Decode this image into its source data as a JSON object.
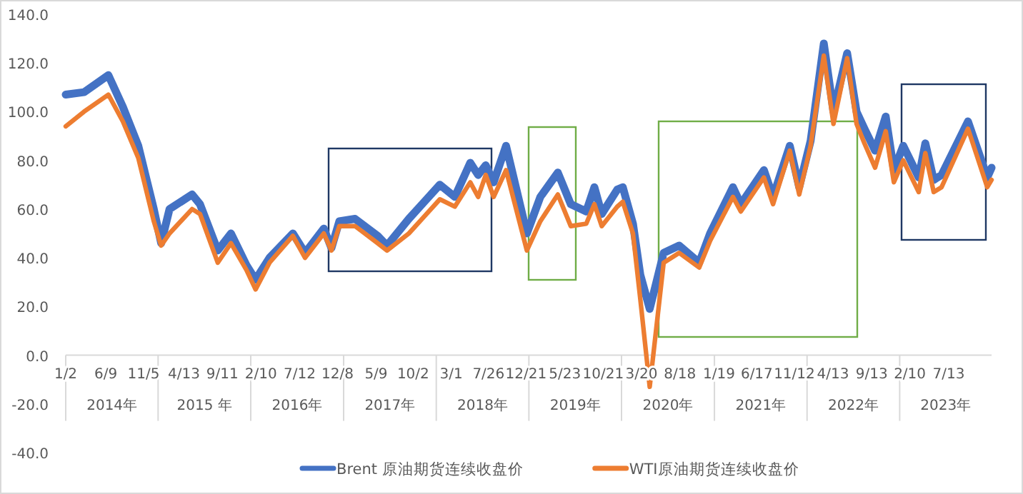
{
  "chart_data": {
    "type": "line",
    "x": [
      "2014-01-02",
      "2014-03-15",
      "2014-06-19",
      "2014-08-15",
      "2014-10-15",
      "2014-12-15",
      "2015-01-13",
      "2015-02-15",
      "2015-05-15",
      "2015-06-15",
      "2015-08-24",
      "2015-10-15",
      "2015-12-15",
      "2016-01-20",
      "2016-03-15",
      "2016-06-15",
      "2016-08-02",
      "2016-10-15",
      "2016-11-14",
      "2016-12-15",
      "2017-02-15",
      "2017-05-15",
      "2017-06-21",
      "2017-09-15",
      "2017-11-15",
      "2018-01-15",
      "2018-03-15",
      "2018-05-15",
      "2018-06-15",
      "2018-07-15",
      "2018-08-15",
      "2018-10-03",
      "2018-12-24",
      "2019-02-15",
      "2019-04-25",
      "2019-06-15",
      "2019-08-15",
      "2019-09-16",
      "2019-10-15",
      "2019-12-15",
      "2020-01-06",
      "2020-02-15",
      "2020-03-15",
      "2020-04-21",
      "2020-06-15",
      "2020-08-15",
      "2020-11-02",
      "2020-12-15",
      "2021-03-15",
      "2021-04-15",
      "2021-07-15",
      "2021-08-20",
      "2021-10-25",
      "2021-12-01",
      "2022-01-15",
      "2022-03-08",
      "2022-04-15",
      "2022-06-08",
      "2022-07-15",
      "2022-08-15",
      "2022-09-26",
      "2022-11-07",
      "2022-12-09",
      "2023-01-15",
      "2023-03-17",
      "2023-04-12",
      "2023-05-15",
      "2023-06-15",
      "2023-09-27",
      "2023-12-12",
      "2023-12-29"
    ],
    "series": [
      {
        "name": "Brent 原油期货连续收盘价",
        "color": "#4472c4",
        "values": [
          107,
          108,
          115,
          102,
          86,
          60,
          46,
          60,
          66,
          62,
          43,
          50,
          37,
          31,
          40,
          50,
          42,
          52,
          44,
          55,
          56,
          49,
          45,
          56,
          63,
          70,
          65,
          79,
          74,
          78,
          71,
          86,
          50,
          65,
          75,
          62,
          59,
          69,
          58,
          68,
          69,
          54,
          33,
          19,
          42,
          45,
          38,
          50,
          69,
          62,
          76,
          65,
          86,
          69,
          88,
          128,
          100,
          124,
          100,
          93,
          84,
          98,
          76,
          86,
          73,
          87,
          72,
          74,
          96,
          73,
          77
        ]
      },
      {
        "name": "WTI原油期货连续收盘价",
        "color": "#ed7d31",
        "values": [
          94,
          100,
          107,
          96,
          81,
          55,
          45,
          50,
          60,
          58,
          38,
          46,
          35,
          27,
          38,
          49,
          40,
          50,
          43,
          53,
          53,
          46,
          43,
          50,
          57,
          64,
          61,
          71,
          65,
          74,
          65,
          76,
          43,
          55,
          66,
          53,
          54,
          62,
          53,
          61,
          63,
          50,
          23,
          -13,
          38,
          42,
          36,
          47,
          65,
          59,
          73,
          62,
          84,
          66,
          86,
          123,
          95,
          122,
          95,
          87,
          77,
          92,
          71,
          80,
          67,
          83,
          67,
          69,
          93,
          69,
          72
        ]
      }
    ],
    "xlim": [
      "2014-01-02",
      "2023-12-29"
    ],
    "xticks": [
      {
        "value": "2014-01-02",
        "label": "1/2"
      },
      {
        "value": "2014-06-09",
        "label": "6/9"
      },
      {
        "value": "2014-11-05",
        "label": "11/5"
      },
      {
        "value": "2015-04-13",
        "label": "4/13"
      },
      {
        "value": "2015-09-11",
        "label": "9/11"
      },
      {
        "value": "2016-02-10",
        "label": "2/10"
      },
      {
        "value": "2016-07-12",
        "label": "7/12"
      },
      {
        "value": "2016-12-08",
        "label": "12/8"
      },
      {
        "value": "2017-05-09",
        "label": "5/9"
      },
      {
        "value": "2017-10-02",
        "label": "10/2"
      },
      {
        "value": "2018-03-01",
        "label": "3/1"
      },
      {
        "value": "2018-07-26",
        "label": "7/26"
      },
      {
        "value": "2018-12-21",
        "label": "12/21"
      },
      {
        "value": "2019-05-23",
        "label": "5/23"
      },
      {
        "value": "2019-10-21",
        "label": "10/21"
      },
      {
        "value": "2020-03-20",
        "label": "3/20"
      },
      {
        "value": "2020-08-18",
        "label": "8/18"
      },
      {
        "value": "2021-01-19",
        "label": "1/19"
      },
      {
        "value": "2021-06-17",
        "label": "6/17"
      },
      {
        "value": "2021-11-12",
        "label": "11/12"
      },
      {
        "value": "2022-04-13",
        "label": "4/13"
      },
      {
        "value": "2022-09-13",
        "label": "9/13"
      },
      {
        "value": "2023-02-10",
        "label": "2/10"
      },
      {
        "value": "2023-07-13",
        "label": "7/13"
      }
    ],
    "ylim": [
      -40,
      140
    ],
    "yticks": [
      {
        "value": -40,
        "label": "-40.0"
      },
      {
        "value": -20,
        "label": "-20.0"
      },
      {
        "value": 0,
        "label": "0.0"
      },
      {
        "value": 20,
        "label": "20.0"
      },
      {
        "value": 40,
        "label": "40.0"
      },
      {
        "value": 60,
        "label": "60.0"
      },
      {
        "value": 80,
        "label": "80.0"
      },
      {
        "value": 100,
        "label": "100.0"
      },
      {
        "value": 120,
        "label": "120.0"
      },
      {
        "value": 140,
        "label": "140.0"
      }
    ],
    "annotations": [
      "2014年",
      "2015 年",
      "2016年",
      "2017年",
      "2018年",
      "2019年",
      "2020年",
      "2021年",
      "2022年",
      "2023年"
    ],
    "grid": false,
    "legend": "bottom",
    "line_style": "solid"
  }
}
